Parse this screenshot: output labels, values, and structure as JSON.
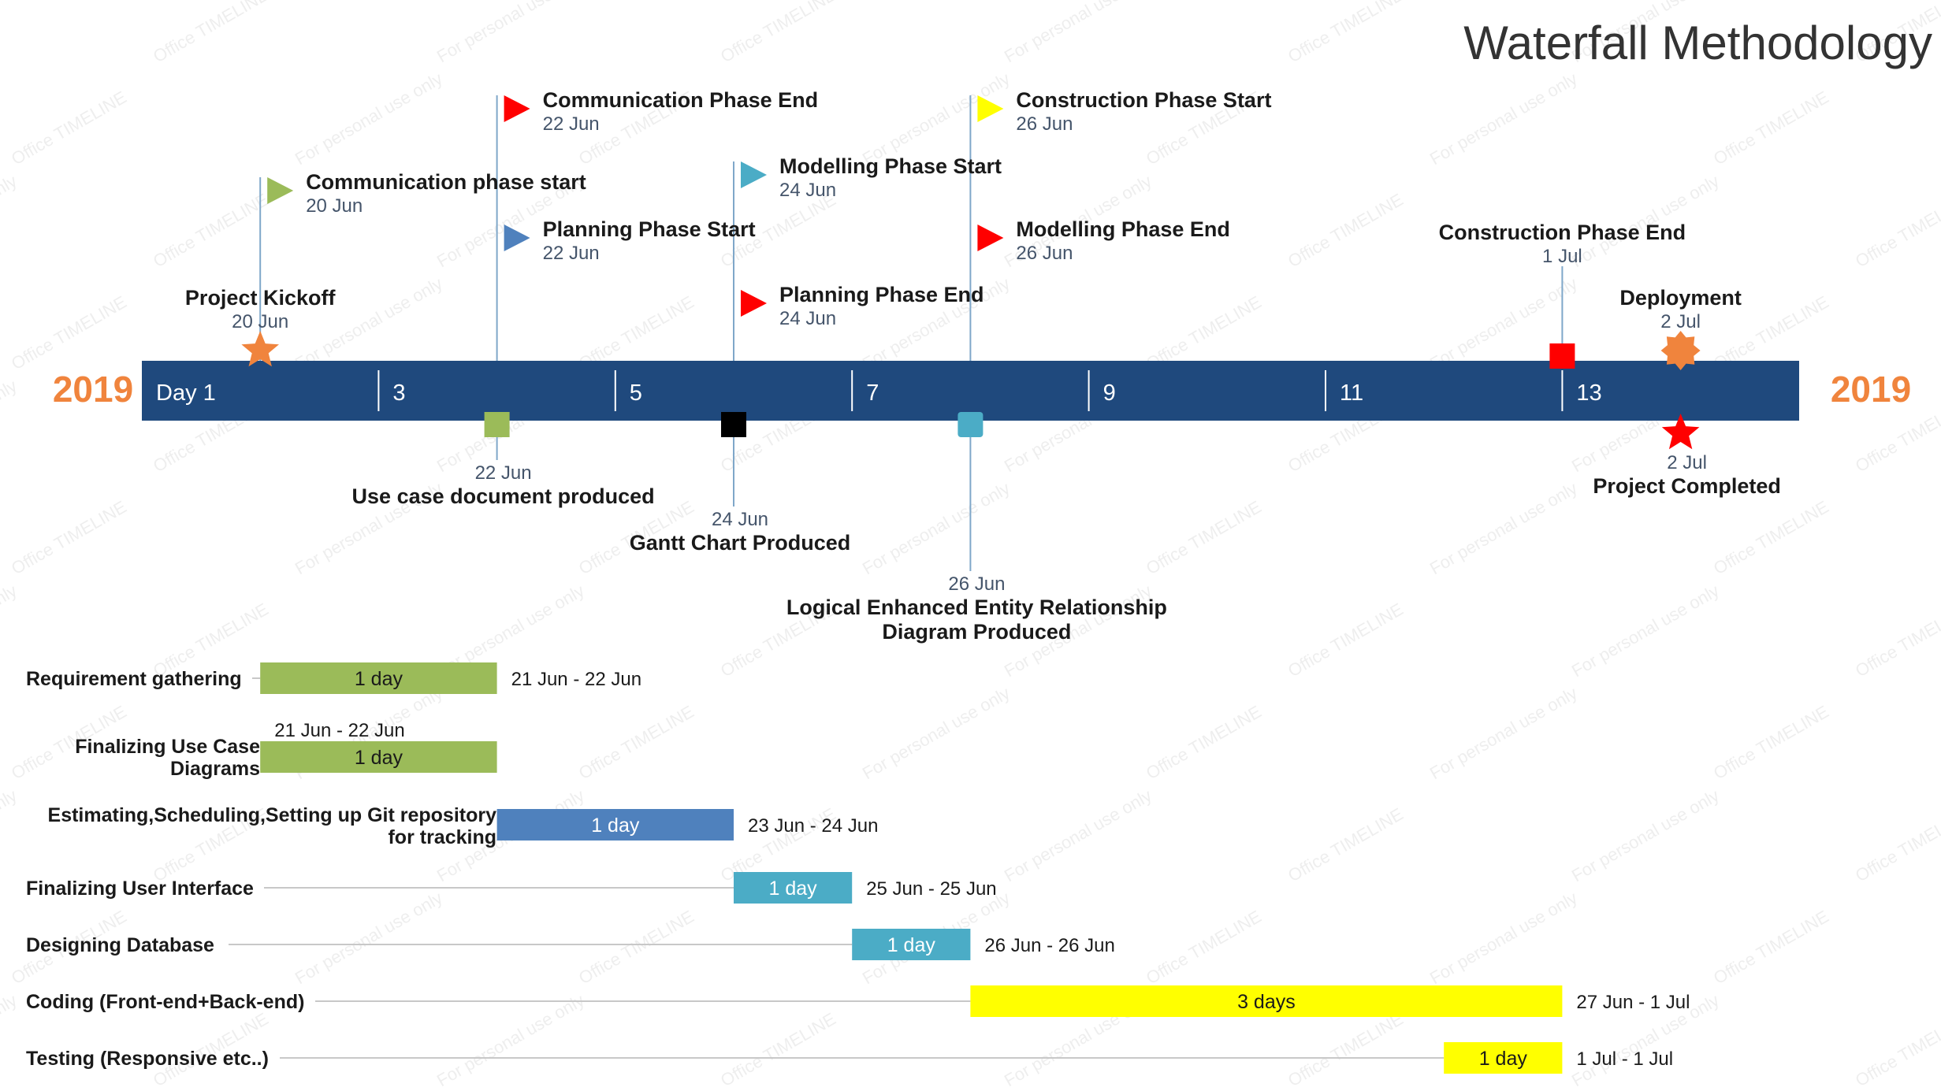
{
  "title": "Waterfall Methodology",
  "year_left": "2019",
  "year_right": "2019",
  "watermark_texts": [
    "For personal use only",
    "Office TIMELINE"
  ],
  "colors": {
    "bar": "#1f497d",
    "year": "#f0843d",
    "green": "#9bbb59",
    "blue": "#4f81bd",
    "teal": "#4bacc6",
    "red": "#ff0000",
    "yellow": "#ffff00",
    "black": "#000000",
    "orange": "#f0843d",
    "date": "#44546a"
  },
  "scale_ticks": [
    "Day 1",
    "3",
    "5",
    "7",
    "9",
    "11",
    "13"
  ],
  "milestones_above": [
    {
      "id": "kickoff",
      "title": "Project Kickoff",
      "date": "20 Jun",
      "icon": "star-icon",
      "color": "orange",
      "day": 2
    },
    {
      "id": "comm-start",
      "title": "Communication phase start",
      "date": "20 Jun",
      "icon": "flag-icon",
      "color": "green",
      "day": 2
    },
    {
      "id": "comm-end",
      "title": "Communication Phase End",
      "date": "22 Jun",
      "icon": "flag-icon",
      "color": "red",
      "day": 4
    },
    {
      "id": "plan-start",
      "title": "Planning Phase Start",
      "date": "22 Jun",
      "icon": "flag-icon",
      "color": "blue",
      "day": 4
    },
    {
      "id": "model-start",
      "title": "Modelling Phase Start",
      "date": "24 Jun",
      "icon": "flag-icon",
      "color": "teal",
      "day": 6
    },
    {
      "id": "plan-end",
      "title": "Planning Phase End",
      "date": "24 Jun",
      "icon": "flag-icon",
      "color": "red",
      "day": 6
    },
    {
      "id": "cons-start",
      "title": "Construction Phase Start",
      "date": "26 Jun",
      "icon": "flag-icon",
      "color": "yellow",
      "day": 8
    },
    {
      "id": "model-end",
      "title": "Modelling Phase End",
      "date": "26 Jun",
      "icon": "flag-icon",
      "color": "red",
      "day": 8
    },
    {
      "id": "cons-end",
      "title": "Construction Phase End",
      "date": "1 Jul",
      "icon": "square-icon",
      "color": "red",
      "day": 13
    },
    {
      "id": "deploy",
      "title": "Deployment",
      "date": "2 Jul",
      "icon": "burst-icon",
      "color": "orange",
      "day": 14
    }
  ],
  "milestones_below": [
    {
      "id": "usecase-doc",
      "title": "Use case document produced",
      "date": "22 Jun",
      "icon": "square-icon",
      "color": "green",
      "day": 4
    },
    {
      "id": "gantt",
      "title": "Gantt Chart Produced",
      "date": "24 Jun",
      "icon": "square-icon",
      "color": "black",
      "day": 6
    },
    {
      "id": "eer",
      "title": "Logical Enhanced Entity Relationship",
      "title2": "Diagram Produced",
      "date": "26 Jun",
      "icon": "rounded-square-icon",
      "color": "teal",
      "day": 8
    },
    {
      "id": "completed",
      "title": "Project Completed",
      "date": "2 Jul",
      "icon": "star-icon",
      "color": "red",
      "day": 14
    }
  ],
  "tasks": [
    {
      "name": "Requirement gathering",
      "duration": "1 day",
      "range": "21 Jun - 22 Jun",
      "start_day": 2,
      "end_day": 4,
      "color": "green"
    },
    {
      "name": "Finalizing Use Case",
      "name2": "Diagrams",
      "duration": "1 day",
      "range": "21 Jun - 22 Jun",
      "start_day": 2,
      "end_day": 4,
      "color": "green"
    },
    {
      "name": "Estimating,Scheduling,Setting up Git repository",
      "name2": "for tracking",
      "duration": "1 day",
      "range": "23 Jun - 24 Jun",
      "start_day": 4,
      "end_day": 6,
      "color": "blue"
    },
    {
      "name": "Finalizing User Interface",
      "duration": "1 day",
      "range": "25 Jun - 25 Jun",
      "start_day": 6,
      "end_day": 7,
      "color": "teal"
    },
    {
      "name": "Designing Database",
      "duration": "1 day",
      "range": "26 Jun - 26 Jun",
      "start_day": 7,
      "end_day": 8,
      "color": "teal"
    },
    {
      "name": "Coding (Front-end+Back-end)",
      "duration": "3 days",
      "range": "27 Jun - 1 Jul",
      "start_day": 8,
      "end_day": 13,
      "color": "yellow"
    },
    {
      "name": "Testing (Responsive etc..)",
      "duration": "1 day",
      "range": "1 Jul - 1 Jul",
      "start_day": 12,
      "end_day": 13,
      "color": "yellow"
    }
  ]
}
